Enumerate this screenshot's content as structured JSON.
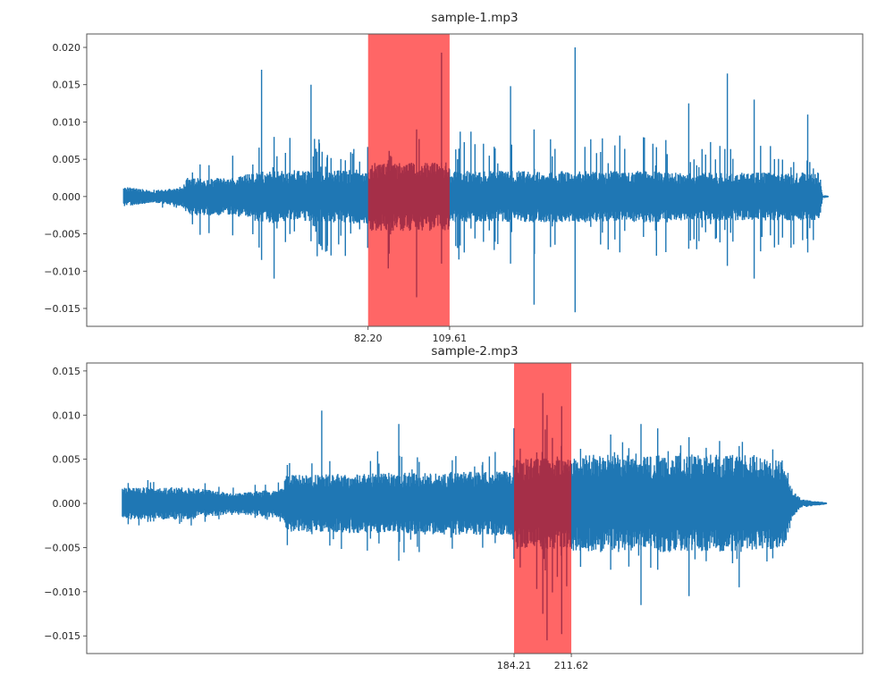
{
  "chart_data": [
    {
      "type": "line",
      "title": "sample-1.mp3",
      "xlabel": "",
      "ylabel": "",
      "xlim": [
        -12.4,
        248.5
      ],
      "ylim": [
        -0.0174,
        0.0218
      ],
      "grid": false,
      "series_color": "#1f77b4",
      "data_x_range": [
        0,
        237
      ],
      "yticks": [
        0.02,
        0.015,
        0.01,
        0.005,
        0.0,
        -0.005,
        -0.01,
        -0.015
      ],
      "ytick_labels": [
        "0.020",
        "0.015",
        "0.010",
        "0.005",
        "0.000",
        "−0.005",
        "−0.010",
        "−0.015"
      ],
      "xticks": [
        82.2,
        109.61
      ],
      "xtick_labels": [
        "82.20",
        "109.61"
      ],
      "highlight_span": {
        "start": 82.2,
        "end": 109.61,
        "color": "#ff0000",
        "alpha": 0.6
      },
      "envelope_note": "waveform amplitude envelope: [x, body_amplitude, spike_amplitude]",
      "envelope": [
        [
          0,
          0.0012,
          0.0016
        ],
        [
          10,
          0.0007,
          0.0012
        ],
        [
          20,
          0.0012,
          0.0025
        ],
        [
          21,
          0.0022,
          0.005
        ],
        [
          37,
          0.0022,
          0.006
        ],
        [
          46,
          0.003,
          0.009
        ],
        [
          67,
          0.003,
          0.008
        ],
        [
          82,
          0.0032,
          0.008
        ],
        [
          83,
          0.004,
          0.01
        ],
        [
          109,
          0.004,
          0.01
        ],
        [
          110,
          0.003,
          0.009
        ],
        [
          180,
          0.003,
          0.008
        ],
        [
          181,
          0.0028,
          0.008
        ],
        [
          234,
          0.0028,
          0.007
        ],
        [
          235,
          0.0002,
          0.0002
        ],
        [
          237,
          0.0001,
          0.0001
        ]
      ],
      "peaks": [
        [
          46.4,
          0.017,
          -0.0085
        ],
        [
          50.6,
          0.008,
          -0.011
        ],
        [
          63,
          0.015,
          -0.006
        ],
        [
          98.5,
          0.009,
          -0.0135
        ],
        [
          106.9,
          0.0193,
          -0.009
        ],
        [
          130.1,
          0.0148,
          -0.009
        ],
        [
          151.8,
          0.02,
          -0.0155
        ],
        [
          138,
          0.009,
          -0.0145
        ],
        [
          190,
          0.0125,
          -0.007
        ],
        [
          203,
          0.0165,
          -0.0093
        ],
        [
          212,
          0.013,
          -0.011
        ],
        [
          230,
          0.011,
          -0.0075
        ]
      ]
    },
    {
      "type": "line",
      "title": "sample-2.mp3",
      "xlabel": "",
      "ylabel": "",
      "xlim": [
        -20.5,
        351.2
      ],
      "ylim": [
        -0.017,
        0.0159
      ],
      "grid": false,
      "series_color": "#1f77b4",
      "data_x_range": [
        -3.4,
        334
      ],
      "yticks": [
        0.015,
        0.01,
        0.005,
        0.0,
        -0.005,
        -0.01,
        -0.015
      ],
      "ytick_labels": [
        "0.015",
        "0.010",
        "0.005",
        "0.000",
        "−0.005",
        "−0.010",
        "−0.015"
      ],
      "xticks": [
        184.21,
        211.62
      ],
      "xtick_labels": [
        "184.21",
        "211.62"
      ],
      "highlight_span": {
        "start": 184.21,
        "end": 211.62,
        "color": "#ff0000",
        "alpha": 0.6
      },
      "envelope_note": "waveform amplitude envelope: [x, body_amplitude, spike_amplitude]",
      "envelope": [
        [
          -3.4,
          0.0016,
          0.0026
        ],
        [
          30,
          0.0016,
          0.0028
        ],
        [
          50,
          0.001,
          0.0018
        ],
        [
          73,
          0.0015,
          0.0025
        ],
        [
          75,
          0.0028,
          0.0048
        ],
        [
          120,
          0.003,
          0.006
        ],
        [
          183,
          0.0032,
          0.006
        ],
        [
          185,
          0.0045,
          0.011
        ],
        [
          211,
          0.0045,
          0.011
        ],
        [
          213,
          0.0048,
          0.008
        ],
        [
          300,
          0.0048,
          0.0075
        ],
        [
          314,
          0.0042,
          0.006
        ],
        [
          318,
          0.0012,
          0.0015
        ],
        [
          322,
          0.0004,
          0.0005
        ],
        [
          334,
          0.0001,
          0.0001
        ]
      ],
      "peaks": [
        [
          92.1,
          0.0105,
          -0.003
        ],
        [
          129,
          0.009,
          -0.0065
        ],
        [
          198,
          0.0125,
          -0.0125
        ],
        [
          200,
          0.01,
          -0.0155
        ],
        [
          207,
          0.011,
          -0.0148
        ],
        [
          230.5,
          0.0078,
          -0.0075
        ],
        [
          245,
          0.009,
          -0.0115
        ],
        [
          253,
          0.0085,
          -0.0075
        ],
        [
          268,
          0.0075,
          -0.0105
        ],
        [
          292,
          0.0065,
          -0.0095
        ]
      ]
    }
  ]
}
